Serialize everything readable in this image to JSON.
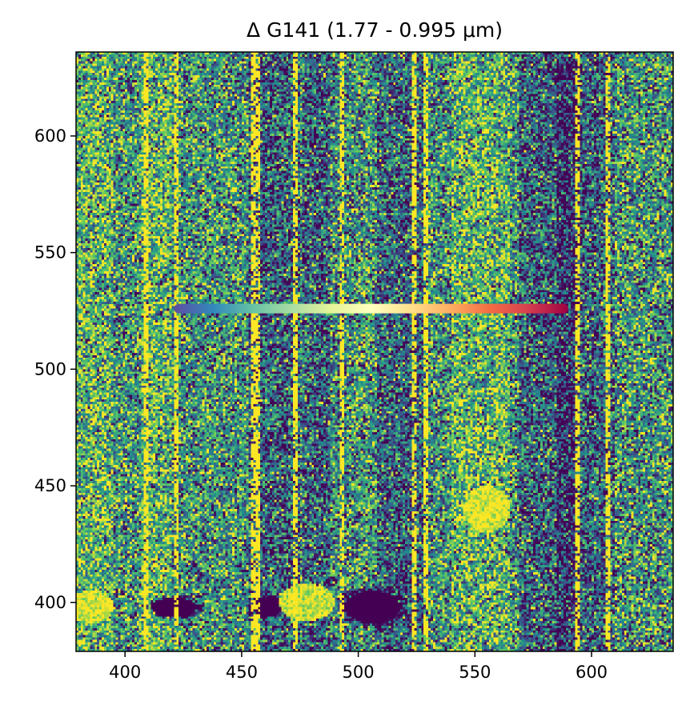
{
  "chart_data": {
    "type": "heatmap",
    "title": "Δ G141 (1.77 - 0.995 μm)",
    "xlabel": "",
    "ylabel": "",
    "xlim": [
      379,
      635
    ],
    "ylim": [
      379,
      636
    ],
    "xticks": [
      400,
      450,
      500,
      550,
      600
    ],
    "yticks": [
      400,
      450,
      500,
      550,
      600
    ],
    "colormap": "viridis",
    "colormap_stops": [
      "#440154",
      "#3b528b",
      "#21918c",
      "#5ec962",
      "#fde725"
    ],
    "grid": false,
    "features": {
      "dark_vertical_bands_x": [
        [
          453,
          475
        ],
        [
          476,
          498
        ],
        [
          508,
          528
        ],
        [
          569,
          595
        ],
        [
          585,
          610
        ]
      ],
      "bright_vertical_bands_x": [
        [
          379,
          395
        ],
        [
          407,
          420
        ],
        [
          488,
          498
        ],
        [
          540,
          565
        ]
      ],
      "bright_streak_x": [
        409,
        422,
        455,
        457,
        473,
        493,
        524,
        529,
        594,
        607
      ],
      "dark_blobs": [
        {
          "x": 506,
          "y": 398,
          "rx": 12,
          "ry": 7
        },
        {
          "x": 421,
          "y": 398,
          "rx": 10,
          "ry": 4
        },
        {
          "x": 461,
          "y": 398,
          "rx": 7,
          "ry": 4
        }
      ],
      "bright_blobs": [
        {
          "x": 386,
          "y": 398,
          "rx": 9,
          "ry": 7
        },
        {
          "x": 478,
          "y": 400,
          "rx": 12,
          "ry": 8
        },
        {
          "x": 555,
          "y": 440,
          "rx": 10,
          "ry": 10
        }
      ]
    },
    "trace": {
      "x_start": 421,
      "x_end": 590,
      "y": 526,
      "colormap": "Spectral_r",
      "colormap_stops": [
        "#5e4fa2",
        "#3288bd",
        "#66c2a5",
        "#abdda4",
        "#e6f598",
        "#ffffbf",
        "#fee08b",
        "#fdae61",
        "#f46d43",
        "#d53e4f",
        "#9e0142"
      ]
    }
  }
}
